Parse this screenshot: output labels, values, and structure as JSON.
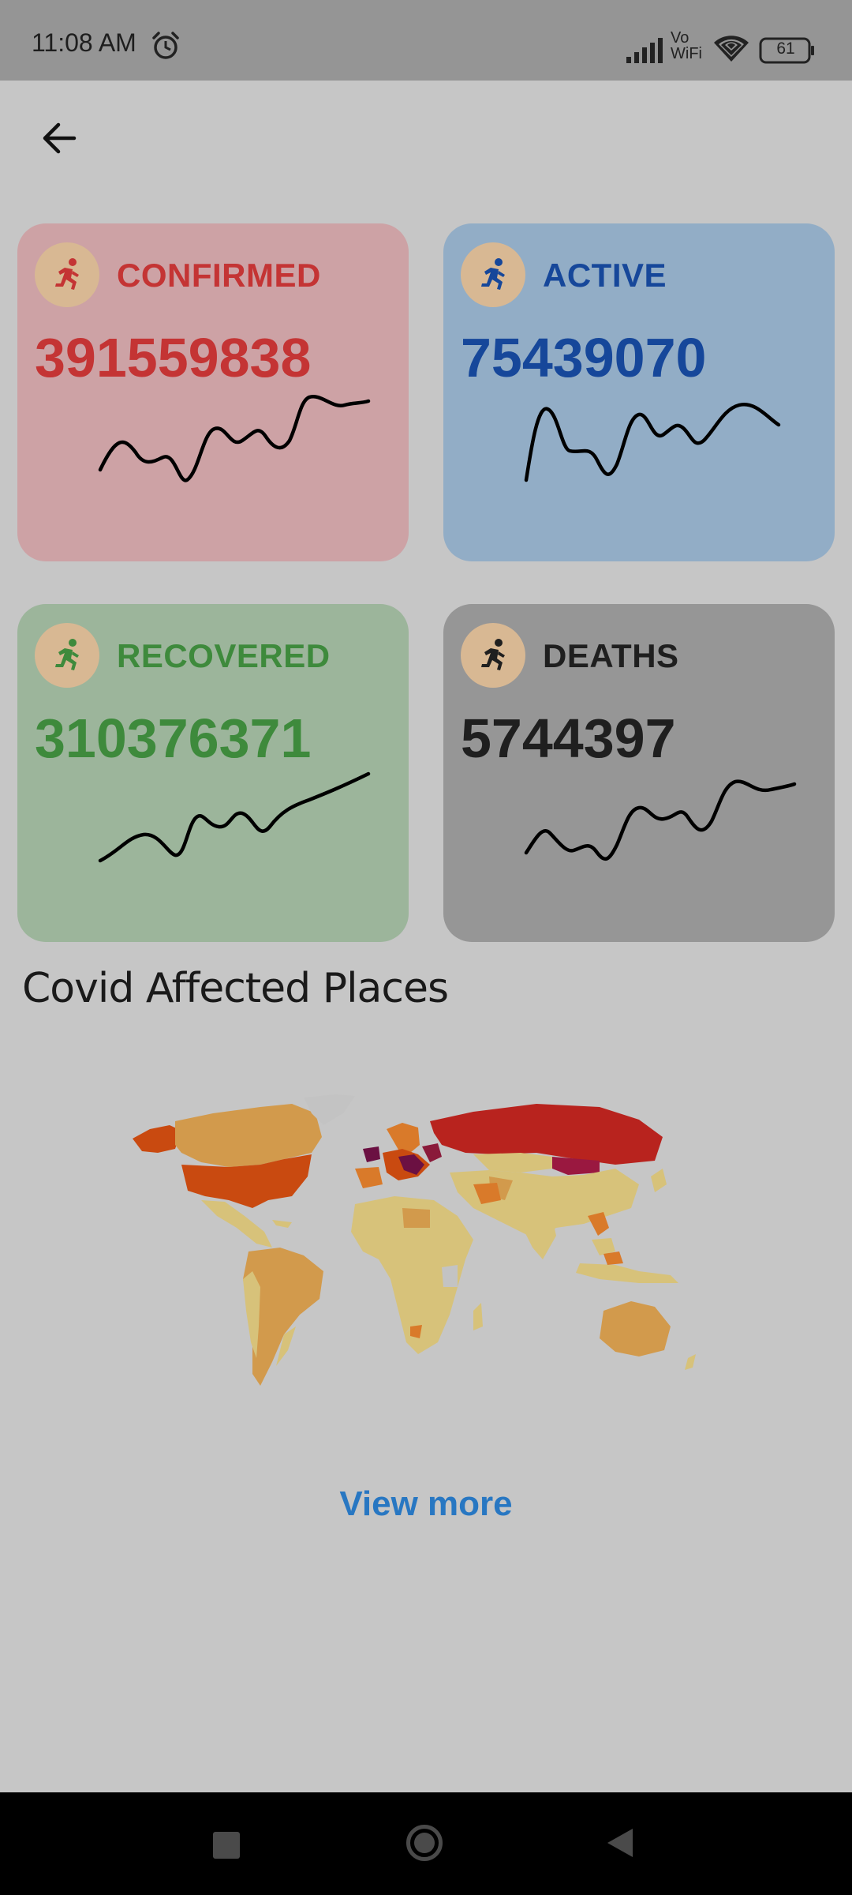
{
  "status_bar": {
    "time": "11:08 AM",
    "vo_label": "Vo",
    "wifi_label": "WiFi",
    "battery": "61",
    "icons": [
      "alarm-icon",
      "signal-icon",
      "wifi-icon",
      "battery-icon"
    ]
  },
  "header": {
    "back_icon": "arrow-left-icon"
  },
  "cards": [
    {
      "key": "confirmed",
      "label": "CONFIRMED",
      "value": "391559838",
      "color": "#c43434",
      "icon": "running-person-icon"
    },
    {
      "key": "active",
      "label": "ACTIVE",
      "value": "75439070",
      "color": "#16479a",
      "icon": "running-person-icon"
    },
    {
      "key": "recovered",
      "label": "RECOVERED",
      "value": "310376371",
      "color": "#3e8a3c",
      "icon": "running-person-icon"
    },
    {
      "key": "deaths",
      "label": "DEATHS",
      "value": "5744397",
      "color": "#1f1f1f",
      "icon": "running-person-icon"
    }
  ],
  "section": {
    "title": "Covid Affected Places"
  },
  "map": {
    "icon": "world-map-choropleth"
  },
  "actions": {
    "view_more": "View more"
  },
  "nav_bar": {
    "icons": [
      "recent-apps-icon",
      "home-icon",
      "back-triangle-icon"
    ]
  }
}
